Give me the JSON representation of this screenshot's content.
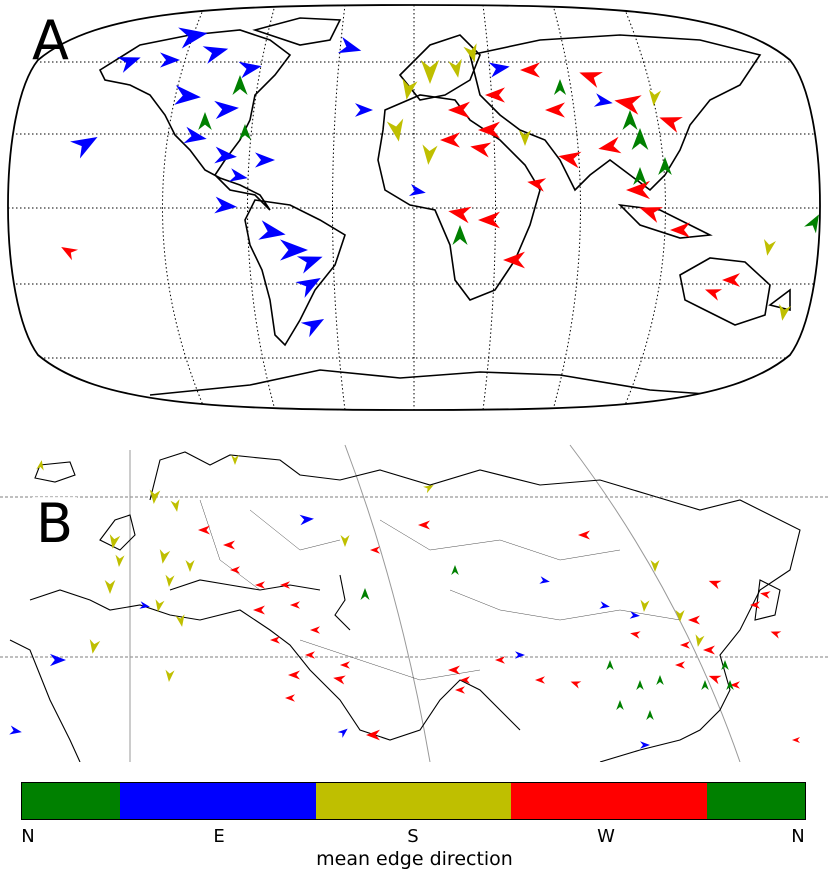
{
  "panels": [
    {
      "id": "A",
      "label": "A",
      "region": "world"
    },
    {
      "id": "B",
      "label": "B",
      "region": "Eurasia"
    }
  ],
  "colorbar": {
    "label": "mean edge direction",
    "ticks": [
      "N",
      "E",
      "S",
      "W",
      "N"
    ],
    "segments": [
      {
        "direction": "N-E",
        "color": "#008000"
      },
      {
        "direction": "E",
        "color": "#0000ff"
      },
      {
        "direction": "E-S",
        "color": "#0000ff"
      },
      {
        "direction": "S",
        "color": "#bfbf00"
      },
      {
        "direction": "S-W",
        "color": "#bfbf00"
      },
      {
        "direction": "W",
        "color": "#ff0000"
      },
      {
        "direction": "W-N",
        "color": "#ff0000"
      },
      {
        "direction": "N",
        "color": "#008000"
      }
    ]
  },
  "colors": {
    "north": "#008000",
    "east": "#0000ff",
    "south": "#bfbf00",
    "west": "#ff0000"
  }
}
